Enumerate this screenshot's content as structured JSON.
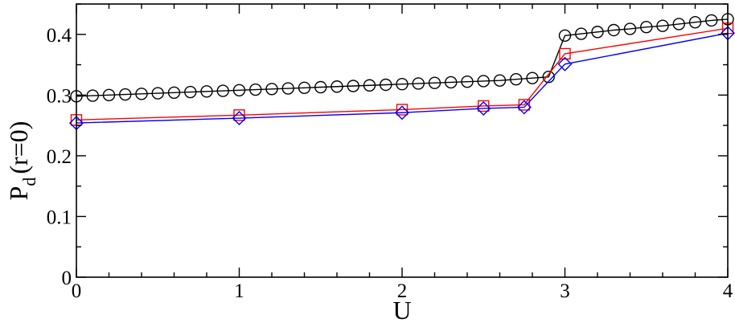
{
  "chart_data": {
    "type": "line",
    "title": "",
    "xlabel": "U",
    "ylabel_main": "P",
    "ylabel_sub": "d",
    "ylabel_tail": "(r=0)",
    "xlim": [
      0,
      4
    ],
    "ylim": [
      0,
      0.45
    ],
    "x_ticks": [
      0,
      1,
      2,
      3,
      4
    ],
    "x_tick_labels": [
      "0",
      "1",
      "2",
      "3",
      "4"
    ],
    "x_minor_step": 0.2,
    "y_ticks": [
      0,
      0.1,
      0.2,
      0.3,
      0.4
    ],
    "y_tick_labels": [
      "0",
      "0.1",
      "0.2",
      "0.3",
      "0.4"
    ],
    "y_minor_step": 0.05,
    "grid": false,
    "series": [
      {
        "marker": "circle",
        "color": "#000000",
        "x": [
          0,
          0.1,
          0.2,
          0.3,
          0.4,
          0.5,
          0.6,
          0.7,
          0.8,
          0.9,
          1.0,
          1.1,
          1.2,
          1.3,
          1.4,
          1.5,
          1.6,
          1.7,
          1.8,
          1.9,
          2.0,
          2.1,
          2.2,
          2.3,
          2.4,
          2.5,
          2.6,
          2.7,
          2.8,
          2.9,
          3.0,
          3.1,
          3.2,
          3.3,
          3.4,
          3.5,
          3.6,
          3.7,
          3.8,
          3.9,
          4.0
        ],
        "y": [
          0.298,
          0.299,
          0.3,
          0.301,
          0.302,
          0.303,
          0.304,
          0.305,
          0.306,
          0.307,
          0.308,
          0.309,
          0.31,
          0.311,
          0.312,
          0.313,
          0.314,
          0.315,
          0.316,
          0.317,
          0.318,
          0.319,
          0.32,
          0.321,
          0.322,
          0.323,
          0.324,
          0.326,
          0.328,
          0.33,
          0.398,
          0.401,
          0.404,
          0.407,
          0.409,
          0.412,
          0.414,
          0.417,
          0.42,
          0.423,
          0.425
        ]
      },
      {
        "marker": "square",
        "color": "#ff0000",
        "x": [
          0,
          1,
          2,
          2.5,
          2.75,
          3,
          4
        ],
        "y": [
          0.259,
          0.267,
          0.276,
          0.282,
          0.284,
          0.368,
          0.41
        ]
      },
      {
        "marker": "diamond",
        "color": "#0000ff",
        "x": [
          0,
          1,
          2,
          2.5,
          2.75,
          3,
          4
        ],
        "y": [
          0.254,
          0.262,
          0.271,
          0.278,
          0.28,
          0.351,
          0.402
        ]
      }
    ]
  }
}
